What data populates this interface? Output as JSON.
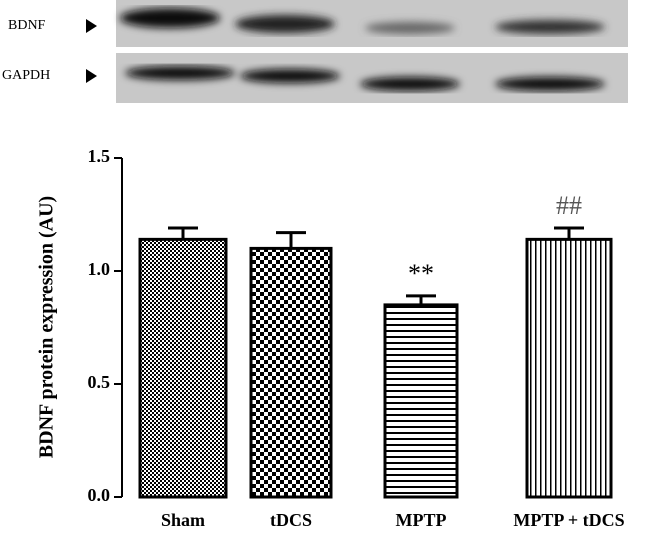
{
  "blot": {
    "labels": [
      "BDNF",
      "GAPDH"
    ]
  },
  "chart_data": {
    "type": "bar",
    "y_label": "BDNF protein expression (AU)",
    "categories": [
      "Sham",
      "tDCS",
      "MPTP",
      "MPTP + tDCS"
    ],
    "values": [
      1.14,
      1.1,
      0.85,
      1.14
    ],
    "errors": [
      0.05,
      0.07,
      0.04,
      0.05
    ],
    "annotations": [
      null,
      null,
      "**",
      "##"
    ],
    "color": "#000000",
    "ylim": [
      0,
      1.5
    ],
    "yticks": [
      {
        "value": 0,
        "label": "0.0"
      },
      {
        "value": 0.5,
        "label": "0.5"
      },
      {
        "value": 1,
        "label": "1.0"
      },
      {
        "value": 1.5,
        "label": "1.5"
      }
    ]
  }
}
